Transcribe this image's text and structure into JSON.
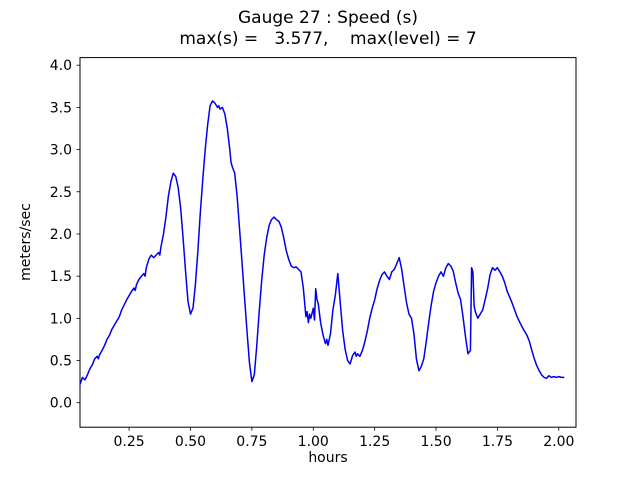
{
  "figure": {
    "background": "#ffffff",
    "title_line1": "Gauge 27 : Speed (s)",
    "title_line2": "max(s) =   3.577,    max(level) = 7",
    "xlabel": "hours",
    "ylabel": "meters/sec",
    "max_s": "3.577",
    "max_level": "7"
  },
  "chart_data": {
    "type": "line",
    "title": "Gauge 27 : Speed (s)",
    "subtitle": "max(s) =   3.577,    max(level) = 7",
    "xlabel": "hours",
    "ylabel": "meters/sec",
    "line_color": "#0000ee",
    "axis_color": "#000000",
    "xlim": [
      0.05,
      2.07
    ],
    "ylim": [
      -0.29,
      4.09
    ],
    "xticks": [
      0.25,
      0.5,
      0.75,
      1.0,
      1.25,
      1.5,
      1.75,
      2.0
    ],
    "yticks": [
      0.0,
      0.5,
      1.0,
      1.5,
      2.0,
      2.5,
      3.0,
      3.5,
      4.0
    ],
    "x": [
      0.05,
      0.06,
      0.07,
      0.08,
      0.09,
      0.1,
      0.11,
      0.12,
      0.125,
      0.13,
      0.14,
      0.15,
      0.16,
      0.17,
      0.18,
      0.19,
      0.2,
      0.21,
      0.22,
      0.23,
      0.24,
      0.25,
      0.26,
      0.27,
      0.275,
      0.28,
      0.29,
      0.3,
      0.31,
      0.315,
      0.32,
      0.33,
      0.34,
      0.35,
      0.36,
      0.37,
      0.375,
      0.38,
      0.39,
      0.4,
      0.41,
      0.42,
      0.43,
      0.44,
      0.45,
      0.46,
      0.47,
      0.48,
      0.49,
      0.5,
      0.51,
      0.52,
      0.53,
      0.54,
      0.55,
      0.56,
      0.57,
      0.58,
      0.59,
      0.6,
      0.61,
      0.615,
      0.62,
      0.63,
      0.64,
      0.65,
      0.66,
      0.665,
      0.67,
      0.68,
      0.69,
      0.7,
      0.71,
      0.72,
      0.73,
      0.74,
      0.75,
      0.76,
      0.77,
      0.78,
      0.79,
      0.8,
      0.81,
      0.82,
      0.83,
      0.84,
      0.85,
      0.86,
      0.87,
      0.88,
      0.89,
      0.9,
      0.91,
      0.92,
      0.93,
      0.94,
      0.95,
      0.96,
      0.97,
      0.975,
      0.98,
      0.985,
      0.99,
      1.0,
      1.005,
      1.01,
      1.015,
      1.02,
      1.03,
      1.04,
      1.05,
      1.055,
      1.06,
      1.07,
      1.08,
      1.09,
      1.1,
      1.11,
      1.12,
      1.13,
      1.14,
      1.15,
      1.16,
      1.17,
      1.175,
      1.18,
      1.19,
      1.2,
      1.21,
      1.22,
      1.23,
      1.24,
      1.25,
      1.26,
      1.27,
      1.28,
      1.29,
      1.3,
      1.31,
      1.32,
      1.33,
      1.34,
      1.35,
      1.36,
      1.37,
      1.38,
      1.39,
      1.4,
      1.41,
      1.42,
      1.43,
      1.44,
      1.45,
      1.46,
      1.47,
      1.48,
      1.49,
      1.5,
      1.51,
      1.52,
      1.53,
      1.54,
      1.55,
      1.56,
      1.57,
      1.58,
      1.59,
      1.6,
      1.61,
      1.62,
      1.63,
      1.64,
      1.645,
      1.65,
      1.655,
      1.66,
      1.67,
      1.68,
      1.69,
      1.7,
      1.71,
      1.72,
      1.73,
      1.74,
      1.75,
      1.76,
      1.77,
      1.78,
      1.79,
      1.8,
      1.81,
      1.82,
      1.83,
      1.84,
      1.85,
      1.86,
      1.87,
      1.88,
      1.89,
      1.9,
      1.91,
      1.92,
      1.93,
      1.94,
      1.95,
      1.96,
      1.97,
      1.98,
      1.99,
      2.0,
      2.01,
      2.02
    ],
    "y": [
      0.22,
      0.3,
      0.27,
      0.33,
      0.4,
      0.45,
      0.52,
      0.55,
      0.52,
      0.57,
      0.62,
      0.68,
      0.75,
      0.8,
      0.87,
      0.92,
      0.97,
      1.02,
      1.1,
      1.16,
      1.22,
      1.27,
      1.32,
      1.36,
      1.33,
      1.4,
      1.46,
      1.5,
      1.53,
      1.5,
      1.6,
      1.7,
      1.75,
      1.72,
      1.75,
      1.78,
      1.75,
      1.85,
      2.0,
      2.2,
      2.45,
      2.62,
      2.72,
      2.68,
      2.55,
      2.3,
      1.95,
      1.55,
      1.2,
      1.05,
      1.12,
      1.4,
      1.8,
      2.25,
      2.65,
      3.0,
      3.3,
      3.52,
      3.577,
      3.55,
      3.5,
      3.52,
      3.48,
      3.5,
      3.42,
      3.25,
      3.0,
      2.85,
      2.8,
      2.72,
      2.45,
      2.05,
      1.65,
      1.25,
      0.85,
      0.48,
      0.25,
      0.33,
      0.68,
      1.08,
      1.45,
      1.75,
      1.95,
      2.1,
      2.17,
      2.2,
      2.17,
      2.15,
      2.08,
      1.95,
      1.8,
      1.7,
      1.62,
      1.6,
      1.61,
      1.58,
      1.55,
      1.35,
      1.02,
      1.08,
      0.95,
      1.05,
      1.0,
      1.12,
      0.98,
      1.35,
      1.22,
      1.18,
      0.95,
      0.8,
      0.7,
      0.75,
      0.68,
      0.82,
      1.1,
      1.28,
      1.53,
      1.18,
      0.85,
      0.63,
      0.5,
      0.46,
      0.56,
      0.6,
      0.55,
      0.58,
      0.55,
      0.62,
      0.72,
      0.85,
      1.0,
      1.12,
      1.22,
      1.35,
      1.45,
      1.52,
      1.55,
      1.5,
      1.46,
      1.55,
      1.58,
      1.65,
      1.72,
      1.58,
      1.38,
      1.18,
      1.05,
      1.0,
      0.82,
      0.52,
      0.38,
      0.43,
      0.52,
      0.72,
      0.95,
      1.15,
      1.32,
      1.42,
      1.5,
      1.55,
      1.5,
      1.6,
      1.65,
      1.62,
      1.56,
      1.42,
      1.3,
      1.22,
      1.02,
      0.78,
      0.58,
      0.62,
      1.6,
      1.55,
      1.15,
      1.08,
      1.0,
      1.05,
      1.1,
      1.22,
      1.35,
      1.52,
      1.6,
      1.57,
      1.6,
      1.55,
      1.5,
      1.42,
      1.32,
      1.25,
      1.18,
      1.1,
      1.02,
      0.96,
      0.9,
      0.85,
      0.8,
      0.73,
      0.62,
      0.52,
      0.44,
      0.38,
      0.33,
      0.3,
      0.29,
      0.32,
      0.3,
      0.31,
      0.3,
      0.31,
      0.3,
      0.3
    ]
  }
}
